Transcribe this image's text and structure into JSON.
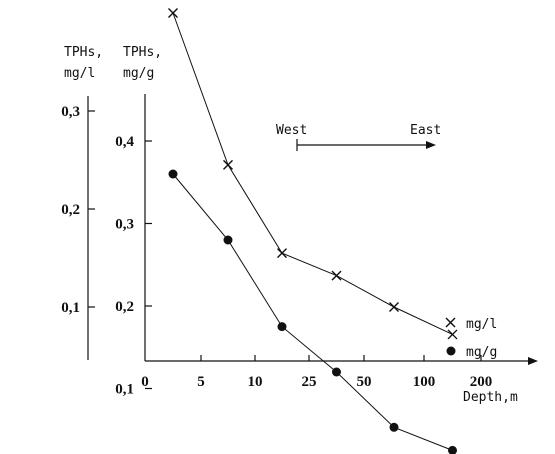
{
  "chart_data": {
    "type": "line",
    "left_axis_title": [
      "TPHs,",
      "mg/l"
    ],
    "right_axis_title": [
      "TPHs,",
      "mg/g"
    ],
    "xlabel": "Depth,m",
    "x_ticks": [
      "0",
      "5",
      "10",
      "25",
      "50",
      "100",
      "200"
    ],
    "y_outer_ticks": [
      "0,1",
      "0,2",
      "0,3"
    ],
    "y_inner_ticks": [
      "0,1",
      "0,2",
      "0,3",
      "0,4"
    ],
    "direction_labels": {
      "start": "West",
      "end": "East"
    },
    "series": [
      {
        "name": "mg/l",
        "marker": "cross",
        "axis": "outer",
        "x": [
          2.5,
          7.5,
          17.5,
          37.5,
          75,
          150
        ],
        "y": [
          0.4,
          0.245,
          0.155,
          0.132,
          0.1,
          0.072
        ]
      },
      {
        "name": "mg/g",
        "marker": "dot",
        "axis": "inner",
        "x": [
          2.5,
          7.5,
          17.5,
          37.5,
          75,
          150
        ],
        "y": [
          0.36,
          0.28,
          0.175,
          0.12,
          0.053,
          0.025
        ]
      }
    ]
  }
}
